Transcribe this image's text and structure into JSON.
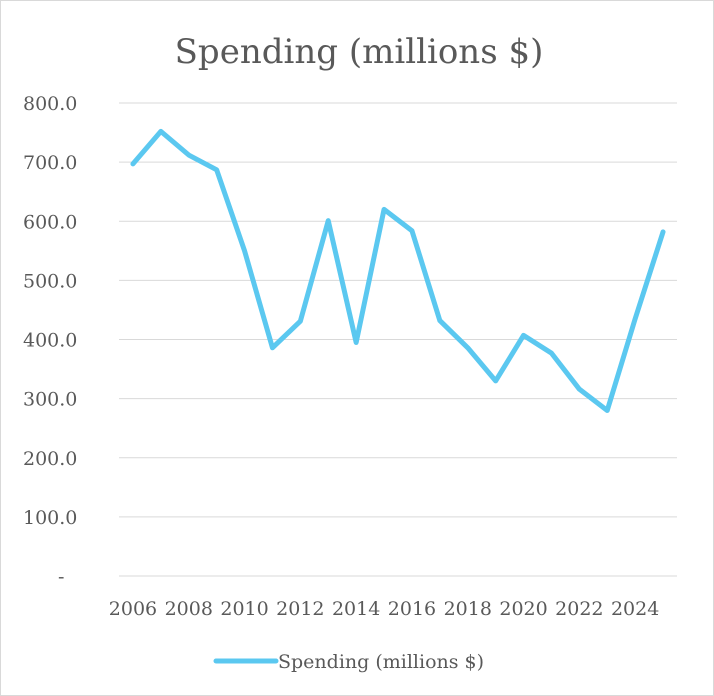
{
  "chart_data": {
    "type": "line",
    "title": "Spending (millions $)",
    "xlabel": "",
    "ylabel": "",
    "x": [
      2006,
      2007,
      2008,
      2009,
      2010,
      2011,
      2012,
      2013,
      2014,
      2015,
      2016,
      2017,
      2018,
      2019,
      2020,
      2021,
      2022,
      2023,
      2024,
      2025
    ],
    "x_tick_labels": [
      "2006",
      "2008",
      "2010",
      "2012",
      "2014",
      "2016",
      "2018",
      "2020",
      "2022",
      "2024"
    ],
    "y_tick_labels": [
      "-",
      "100.0",
      "200.0",
      "300.0",
      "400.0",
      "500.0",
      "600.0",
      "700.0",
      "800.0"
    ],
    "ylim": [
      0,
      800
    ],
    "grid": true,
    "legend_position": "bottom",
    "series": [
      {
        "name": "Spending (millions $)",
        "color": "#5BC8F0",
        "values": [
          697,
          752,
          712,
          687,
          550,
          386,
          431,
          601,
          395,
          620,
          584,
          432,
          386,
          330,
          407,
          377,
          316,
          280,
          435,
          582
        ]
      }
    ]
  }
}
